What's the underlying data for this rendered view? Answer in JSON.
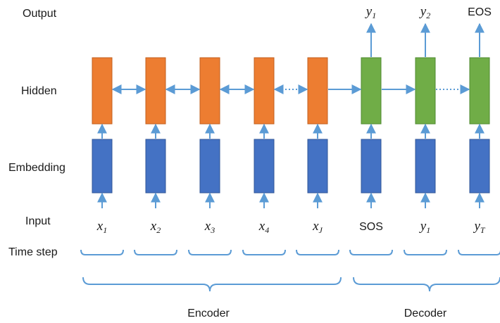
{
  "row_labels": {
    "output": "Output",
    "hidden": "Hidden",
    "embedding": "Embedding",
    "input": "Input",
    "time_step": "Time step"
  },
  "inputs": [
    {
      "base": "x",
      "sub": "1"
    },
    {
      "base": "x",
      "sub": "2"
    },
    {
      "base": "x",
      "sub": "3"
    },
    {
      "base": "x",
      "sub": "4"
    },
    {
      "base": "x",
      "sub": "J"
    },
    {
      "text": "SOS"
    },
    {
      "base": "y",
      "sub": "1"
    },
    {
      "base": "y",
      "sub": "T"
    }
  ],
  "outputs": [
    {
      "base": "y",
      "sub": "1"
    },
    {
      "base": "y",
      "sub": "2"
    },
    {
      "text": "EOS"
    }
  ],
  "groups": {
    "encoder": "Encoder",
    "decoder": "Decoder"
  },
  "colors": {
    "encoder_hidden": "#ED7D31",
    "decoder_hidden": "#70AD47",
    "embedding": "#4472C4",
    "arrow": "#5B9BD5",
    "brace": "#5B9BD5"
  }
}
